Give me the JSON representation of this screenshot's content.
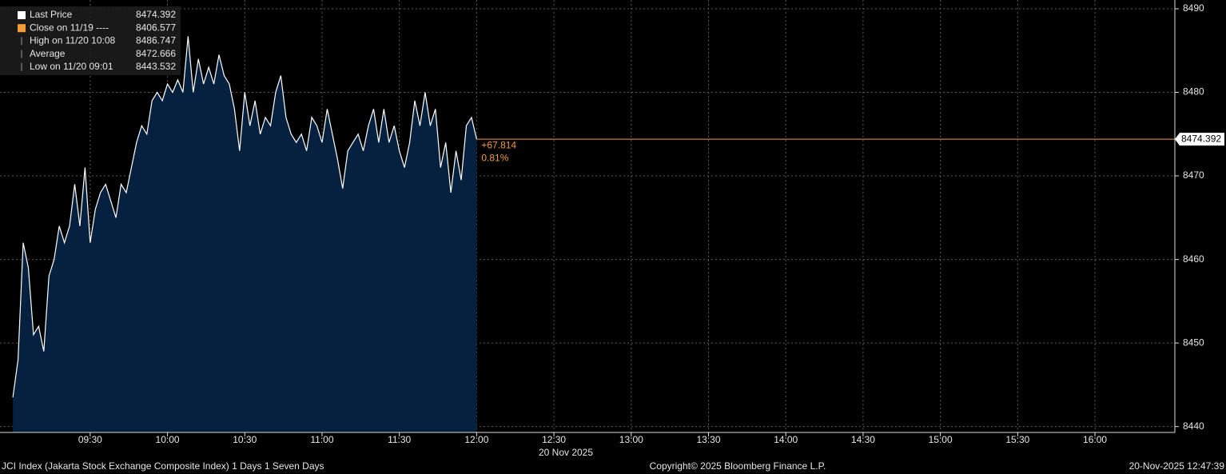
{
  "chart_data": {
    "type": "area",
    "series": [
      {
        "name": "Last Price",
        "color": "#ffffff",
        "fill": "#06213f",
        "x": [
          "09:00",
          "09:02",
          "09:04",
          "09:06",
          "09:08",
          "09:10",
          "09:12",
          "09:14",
          "09:16",
          "09:18",
          "09:20",
          "09:22",
          "09:24",
          "09:26",
          "09:28",
          "09:30",
          "09:32",
          "09:34",
          "09:36",
          "09:38",
          "09:40",
          "09:42",
          "09:44",
          "09:46",
          "09:48",
          "09:50",
          "09:52",
          "09:54",
          "09:56",
          "09:58",
          "10:00",
          "10:02",
          "10:04",
          "10:06",
          "10:08",
          "10:10",
          "10:12",
          "10:14",
          "10:16",
          "10:18",
          "10:20",
          "10:22",
          "10:24",
          "10:26",
          "10:28",
          "10:30",
          "10:32",
          "10:34",
          "10:36",
          "10:38",
          "10:40",
          "10:42",
          "10:44",
          "10:46",
          "10:48",
          "10:50",
          "10:52",
          "10:54",
          "10:56",
          "10:58",
          "11:00",
          "11:02",
          "11:04",
          "11:06",
          "11:08",
          "11:10",
          "11:12",
          "11:14",
          "11:16",
          "11:18",
          "11:20",
          "11:22",
          "11:24",
          "11:26",
          "11:28",
          "11:30",
          "11:32",
          "11:34",
          "11:36",
          "11:38",
          "11:40",
          "11:42",
          "11:44",
          "11:46",
          "11:48",
          "11:50",
          "11:52",
          "11:54",
          "11:56",
          "11:58",
          "12:00"
        ],
        "values": [
          8443.5,
          8448,
          8462,
          8459,
          8451,
          8452,
          8449,
          8458,
          8460,
          8464,
          8462,
          8464,
          8469,
          8464,
          8471,
          8462,
          8466,
          8468,
          8469,
          8467,
          8465,
          8469,
          8468,
          8471,
          8474,
          8476,
          8475,
          8479,
          8480,
          8479,
          8481,
          8480,
          8481.5,
          8480,
          8486.7,
          8480,
          8484,
          8481,
          8483,
          8481,
          8484.5,
          8482,
          8481,
          8478,
          8473,
          8480,
          8476,
          8479,
          8475,
          8477,
          8476,
          8480,
          8482,
          8477,
          8475,
          8474,
          8475,
          8473,
          8477,
          8476,
          8474,
          8478,
          8475,
          8472,
          8468.5,
          8473,
          8474,
          8475,
          8473,
          8476,
          8478,
          8474,
          8478,
          8474,
          8476,
          8473,
          8471,
          8474,
          8479,
          8476,
          8480,
          8476,
          8478,
          8471,
          8474,
          8468,
          8473,
          8469.5,
          8476,
          8477,
          8474.392
        ]
      }
    ],
    "last_value": 8474.392,
    "last_line_color": "#f39c3a",
    "change_label": "+67.814",
    "change_pct_label": "0.81%",
    "stats": [
      {
        "label": "Close on 11/19 ----",
        "value": 8406.577,
        "color": "#f39c3a"
      },
      {
        "label": "High on 11/20 10:08",
        "value": 8486.747
      },
      {
        "label": "Average",
        "value": 8472.666
      },
      {
        "label": "Low on 11/20 09:01",
        "value": 8443.532
      }
    ],
    "xlim": [
      "08:55",
      "16:31"
    ],
    "xticks": [
      "09:30",
      "10:00",
      "10:30",
      "11:00",
      "11:30",
      "12:00",
      "12:30",
      "13:00",
      "13:30",
      "14:00",
      "14:30",
      "15:00",
      "15:30",
      "16:00"
    ],
    "date_label": "20 Nov 2025",
    "ylim": [
      8439.3,
      8491.05
    ],
    "yticks": [
      8440,
      8450,
      8460,
      8470,
      8480,
      8490
    ],
    "grid": true,
    "footer_left": "JCI Index (Jakarta Stock Exchange Composite Index) 1 Days 1 Seven Days",
    "footer_center": "Copyright© 2025 Bloomberg Finance L.P.",
    "footer_right": "20-Nov-2025 12:47:39"
  }
}
